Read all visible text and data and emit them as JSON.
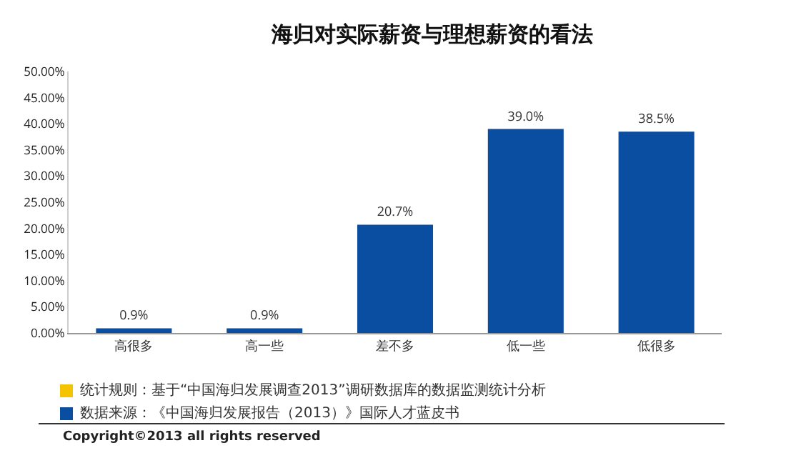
{
  "chart_data": {
    "type": "bar",
    "title": "海归对实际薪资与理想薪资的看法",
    "categories": [
      "高很多",
      "高一些",
      "差不多",
      "低一些",
      "低很多"
    ],
    "values": [
      0.9,
      0.9,
      20.7,
      39.0,
      38.5
    ],
    "value_labels": [
      "0.9%",
      "0.9%",
      "20.7%",
      "39.0%",
      "38.5%"
    ],
    "color": "#0a4ea2",
    "ylim": [
      0,
      50
    ],
    "yticks": [
      {
        "value": 0,
        "label": "0.00%"
      },
      {
        "value": 5,
        "label": "5.00%"
      },
      {
        "value": 10,
        "label": "10.00%"
      },
      {
        "value": 15,
        "label": "15.00%"
      },
      {
        "value": 20,
        "label": "20.00%"
      },
      {
        "value": 25,
        "label": "25.00%"
      },
      {
        "value": 30,
        "label": "30.00%"
      },
      {
        "value": 35,
        "label": "35.00%"
      },
      {
        "value": 40,
        "label": "40.00%"
      },
      {
        "value": 45,
        "label": "45.00%"
      },
      {
        "value": 50,
        "label": "50.00%"
      }
    ],
    "grid": false,
    "annotations": [
      "统计规则：基于“中国海归发展调查2013”调研数据库的数据监测统计分析",
      "数据来源：《中国海归发展报告（2013）》国际人才蓝皮书",
      "Copyright©2013 all rights reserved"
    ]
  }
}
